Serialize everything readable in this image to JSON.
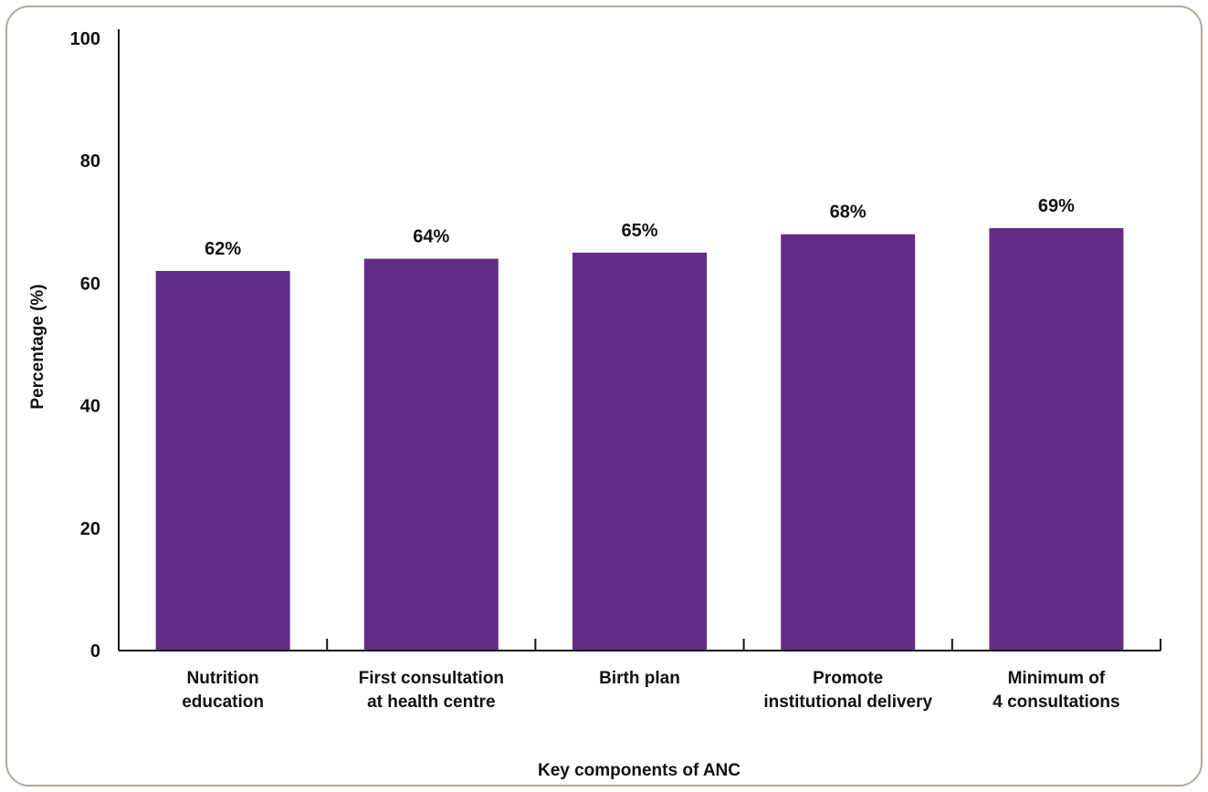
{
  "chart_data": {
    "type": "bar",
    "title": "",
    "xlabel": "Key components of ANC",
    "ylabel": "Percentage (%)",
    "ylim": [
      0,
      100
    ],
    "yticks": [
      0,
      20,
      40,
      60,
      80,
      100
    ],
    "grid": false,
    "categories": [
      [
        "Nutrition",
        "education"
      ],
      [
        "First consultation",
        "at health centre"
      ],
      [
        "Birth plan"
      ],
      [
        "Promote",
        "institutional delivery"
      ],
      [
        "Minimum of",
        "4 consultations"
      ]
    ],
    "values": [
      62,
      64,
      65,
      68,
      69
    ],
    "data_labels": [
      "62%",
      "64%",
      "65%",
      "68%",
      "69%"
    ],
    "bar_color": "#652c86"
  }
}
